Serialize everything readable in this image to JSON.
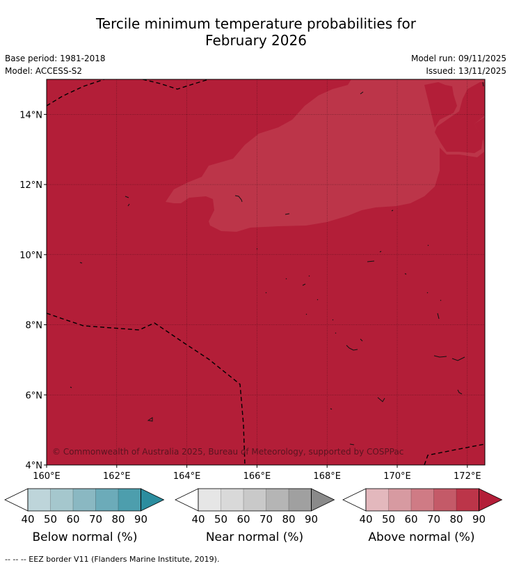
{
  "title": {
    "line1": "Tercile minimum temperature probabilities for",
    "line2": "February 2026"
  },
  "meta": {
    "base_period": "Base period: 1981-2018",
    "model": "Model: ACCESS-S2",
    "model_run": "Model run: 09/11/2025",
    "issued": "Issued: 13/11/2025"
  },
  "map": {
    "lon_range": [
      160,
      172.5
    ],
    "lat_range": [
      4,
      15
    ],
    "lon_ticks": [
      {
        "value": 160,
        "label": "160°E"
      },
      {
        "value": 162,
        "label": "162°E"
      },
      {
        "value": 164,
        "label": "164°E"
      },
      {
        "value": 166,
        "label": "166°E"
      },
      {
        "value": 168,
        "label": "168°E"
      },
      {
        "value": 170,
        "label": "170°E"
      },
      {
        "value": 172,
        "label": "172°E"
      }
    ],
    "lat_ticks": [
      {
        "value": 4,
        "label": "4°N"
      },
      {
        "value": 6,
        "label": "6°N"
      },
      {
        "value": 8,
        "label": "8°N"
      },
      {
        "value": 10,
        "label": "10°N"
      },
      {
        "value": 12,
        "label": "12°N"
      },
      {
        "value": 14,
        "label": "14°N"
      }
    ],
    "background_class": "Above normal 80-90%",
    "background_color": "#b31e38",
    "lighter_region_class": "Above normal 70-80%",
    "lighter_region_color": "#bc3549",
    "copyright": "© Commonwealth of Australia 2025, Bureau of Meteorology, supported by COSPPac"
  },
  "colorbars": [
    {
      "name": "Below normal (%)",
      "ticks": [
        "40",
        "50",
        "60",
        "70",
        "80",
        "90"
      ],
      "colors": [
        "#bed5da",
        "#a5c7cd",
        "#8ab8c2",
        "#6cabb9",
        "#4d9ead",
        "#2b8d9f"
      ]
    },
    {
      "name": "Near normal (%)",
      "ticks": [
        "40",
        "50",
        "60",
        "70",
        "80",
        "90"
      ],
      "colors": [
        "#e6e6e6",
        "#d9d9d9",
        "#c9c9c9",
        "#b5b5b5",
        "#a0a0a0",
        "#8a8a8a"
      ]
    },
    {
      "name": "Above normal (%)",
      "ticks": [
        "40",
        "50",
        "60",
        "70",
        "80",
        "90"
      ],
      "colors": [
        "#e3b8bd",
        "#d79aa1",
        "#cf7b85",
        "#c45a68",
        "#bc3549",
        "#b31e38"
      ]
    }
  ],
  "footnote": "--  --  -- EEZ border V11 (Flanders Marine Institute, 2019)."
}
